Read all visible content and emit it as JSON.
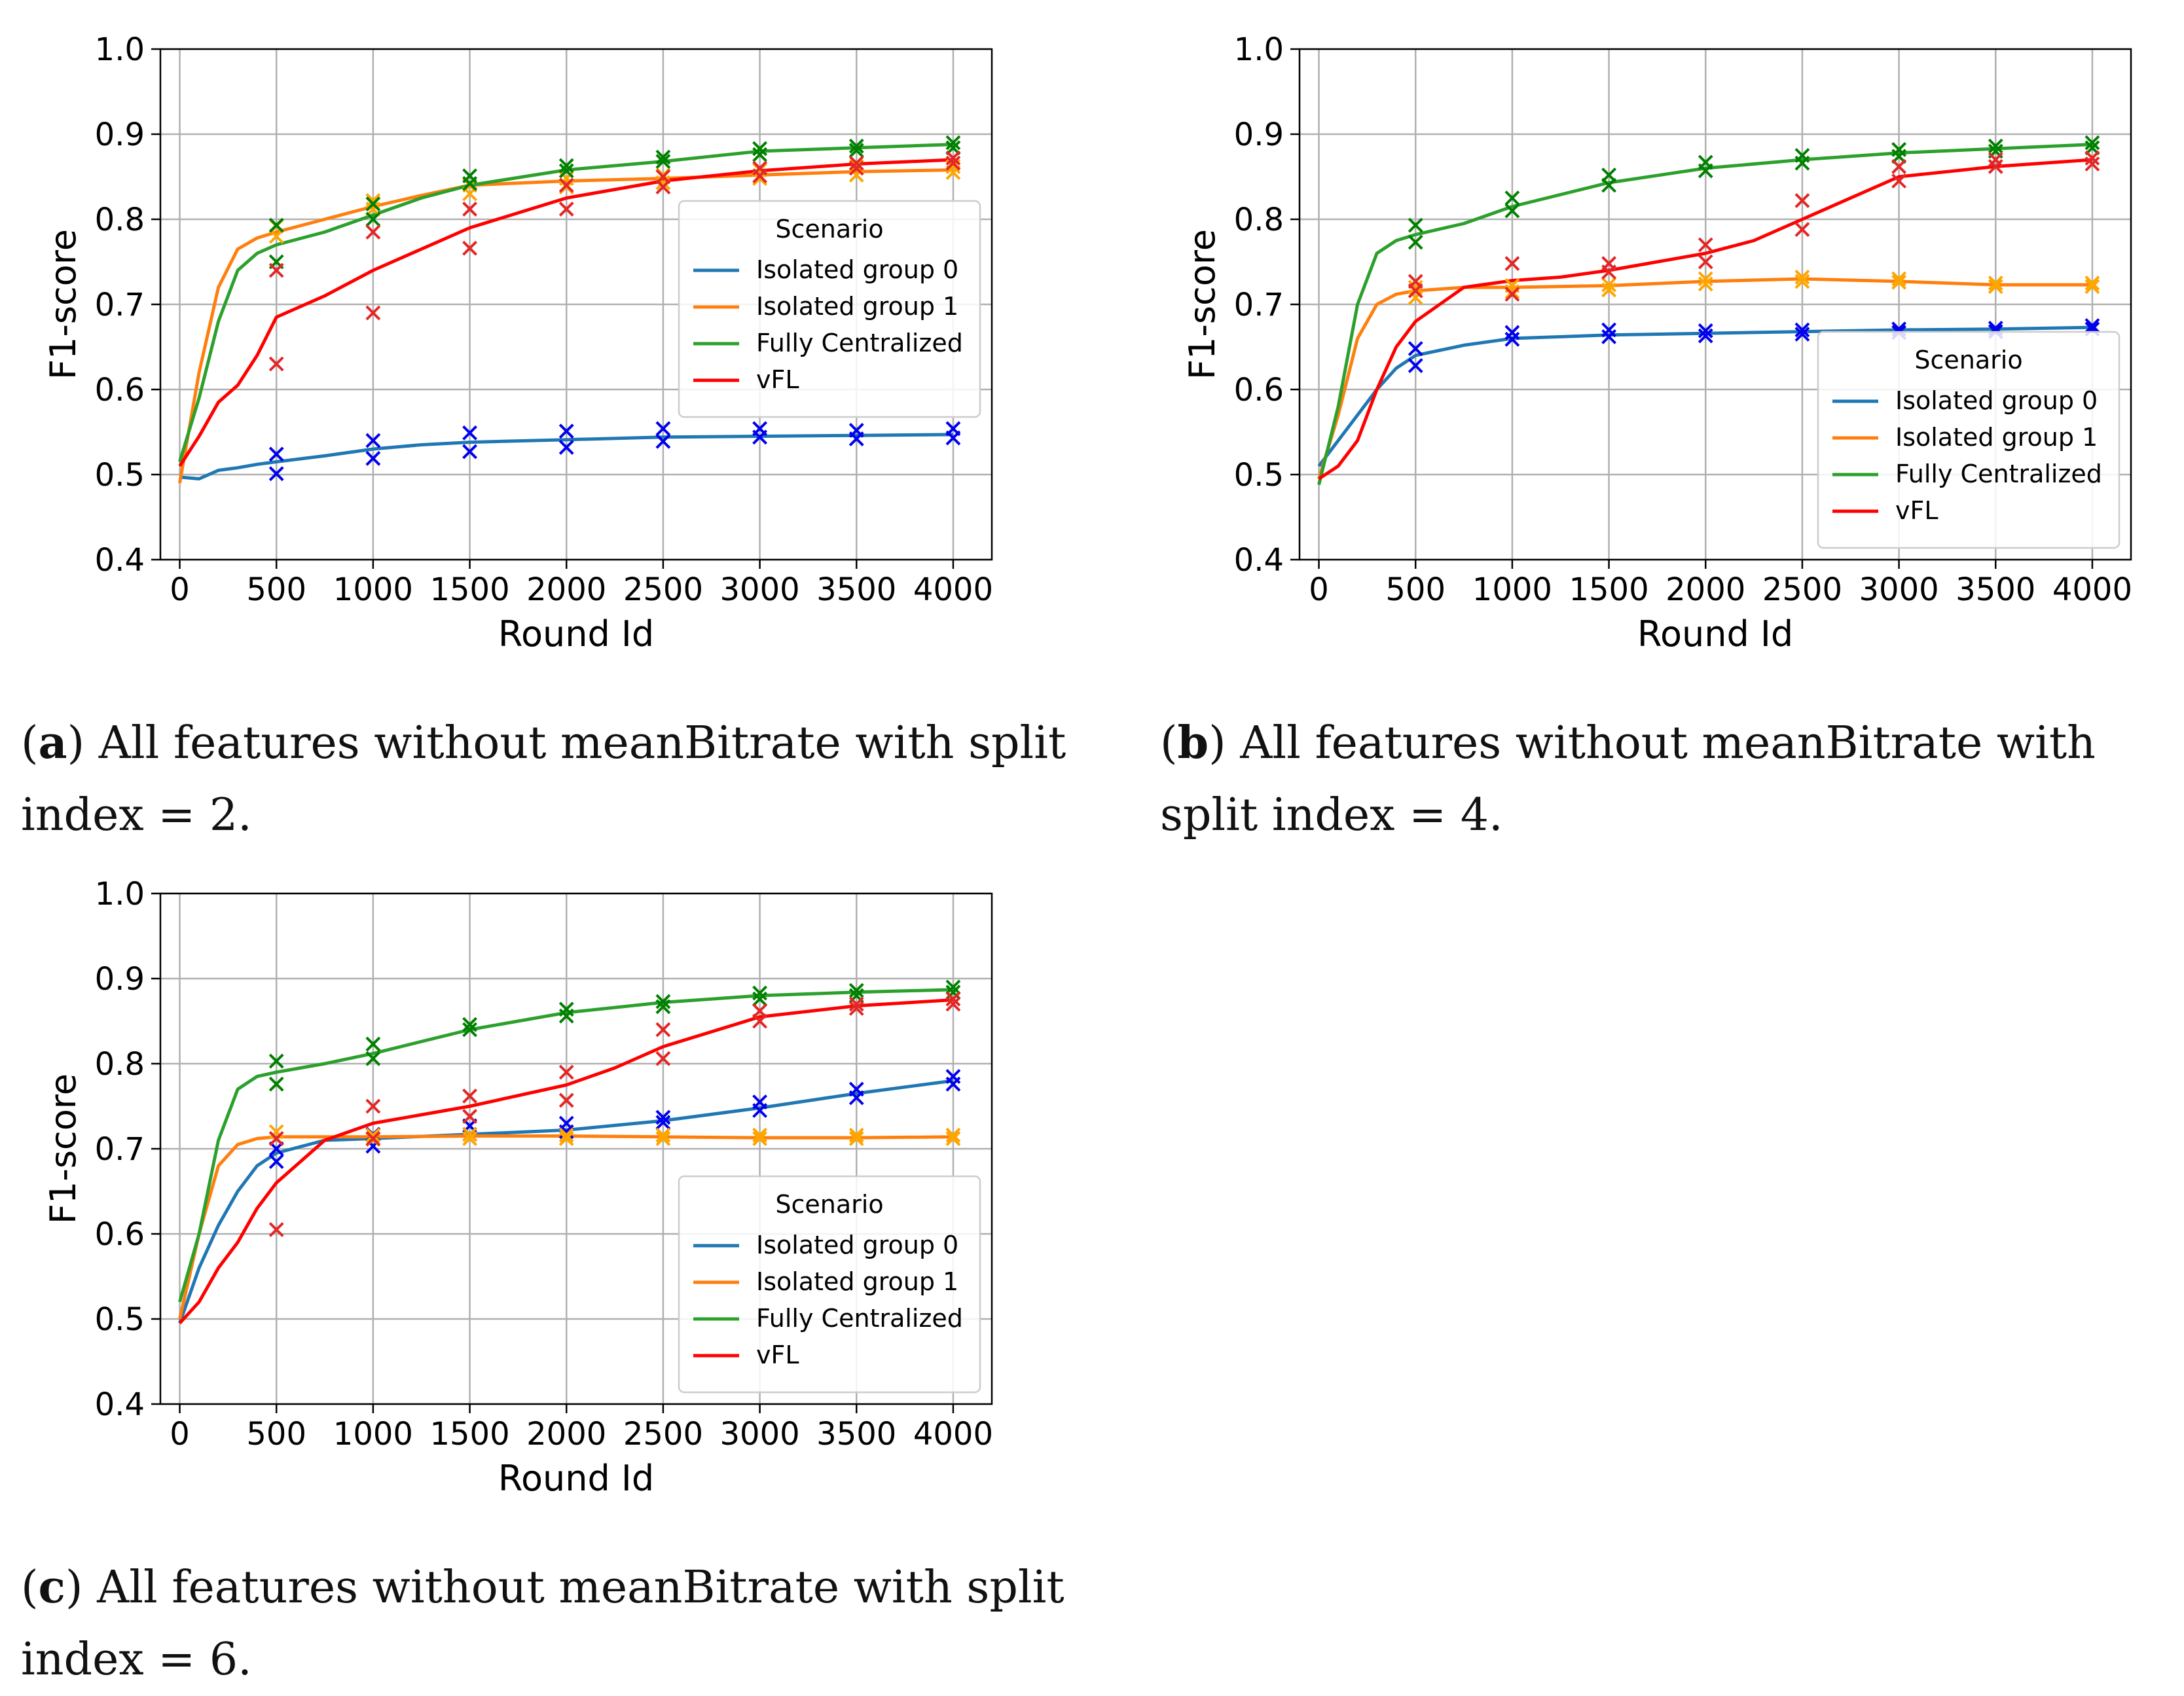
{
  "chart_data": [
    {
      "type": "line",
      "panel_letter": "a",
      "caption": "All features without meanBitrate with split index = 2.",
      "xlabel": "Round Id",
      "ylabel": "F1-score",
      "xlim": [
        -100,
        4200
      ],
      "ylim": [
        0.4,
        1.0
      ],
      "xticks": [
        0,
        500,
        1000,
        1500,
        2000,
        2500,
        3000,
        3500,
        4000
      ],
      "yticks": [
        0.4,
        0.5,
        0.6,
        0.7,
        0.8,
        0.9,
        1.0
      ],
      "grid": true,
      "legend": {
        "title": "Scenario",
        "placement": "center-right",
        "entries": [
          "Isolated group 0",
          "Isolated group 1",
          "Fully Centralized",
          "vFL"
        ]
      },
      "series": [
        {
          "name": "Isolated group 0",
          "color": "#1f77b4",
          "marker_color": "#0000ee",
          "x": [
            0,
            100,
            200,
            300,
            400,
            500,
            750,
            1000,
            1250,
            1500,
            2000,
            2500,
            3000,
            3500,
            4000
          ],
          "y": [
            0.497,
            0.495,
            0.505,
            0.508,
            0.512,
            0.515,
            0.522,
            0.53,
            0.535,
            0.538,
            0.541,
            0.544,
            0.545,
            0.546,
            0.547
          ],
          "markers_x": [
            500,
            500,
            1000,
            1000,
            1500,
            1500,
            2000,
            2000,
            2500,
            2500,
            3000,
            3000,
            3500,
            3500,
            4000,
            4000
          ],
          "markers_y": [
            0.524,
            0.501,
            0.54,
            0.519,
            0.549,
            0.527,
            0.551,
            0.532,
            0.554,
            0.539,
            0.554,
            0.544,
            0.552,
            0.542,
            0.554,
            0.543
          ]
        },
        {
          "name": "Isolated group 1",
          "color": "#ff7f0e",
          "marker_color": "#ffa500",
          "x": [
            0,
            100,
            200,
            300,
            400,
            500,
            750,
            1000,
            1250,
            1500,
            2000,
            2500,
            3000,
            3500,
            4000
          ],
          "y": [
            0.49,
            0.62,
            0.72,
            0.765,
            0.778,
            0.785,
            0.8,
            0.815,
            0.828,
            0.84,
            0.845,
            0.848,
            0.852,
            0.856,
            0.858
          ],
          "markers_x": [
            500,
            500,
            1000,
            1000,
            1500,
            1500,
            2000,
            2000,
            2500,
            2500,
            3000,
            3000,
            3500,
            3500,
            4000,
            4000
          ],
          "markers_y": [
            0.792,
            0.78,
            0.822,
            0.812,
            0.84,
            0.83,
            0.848,
            0.838,
            0.852,
            0.843,
            0.858,
            0.848,
            0.862,
            0.852,
            0.862,
            0.855
          ]
        },
        {
          "name": "Fully Centralized",
          "color": "#2ca02c",
          "marker_color": "#008000",
          "x": [
            0,
            100,
            200,
            300,
            400,
            500,
            750,
            1000,
            1250,
            1500,
            2000,
            2500,
            3000,
            3500,
            4000
          ],
          "y": [
            0.515,
            0.59,
            0.68,
            0.74,
            0.76,
            0.77,
            0.785,
            0.805,
            0.825,
            0.84,
            0.858,
            0.868,
            0.88,
            0.884,
            0.888
          ],
          "markers_x": [
            500,
            500,
            1000,
            1000,
            1500,
            1500,
            2000,
            2000,
            2500,
            2500,
            3000,
            3000,
            3500,
            3500,
            4000,
            4000
          ],
          "markers_y": [
            0.793,
            0.75,
            0.818,
            0.8,
            0.851,
            0.842,
            0.863,
            0.857,
            0.873,
            0.868,
            0.883,
            0.876,
            0.886,
            0.881,
            0.89,
            0.884
          ]
        },
        {
          "name": "vFL",
          "color": "#ff0000",
          "marker_color": "#e32626",
          "x": [
            0,
            100,
            200,
            300,
            400,
            500,
            750,
            1000,
            1250,
            1500,
            2000,
            2500,
            3000,
            3500,
            4000
          ],
          "y": [
            0.51,
            0.545,
            0.585,
            0.605,
            0.64,
            0.685,
            0.71,
            0.74,
            0.765,
            0.79,
            0.825,
            0.845,
            0.857,
            0.865,
            0.87
          ],
          "markers_x": [
            500,
            500,
            1000,
            1000,
            1500,
            1500,
            2000,
            2000,
            2500,
            2500,
            3000,
            3000,
            3500,
            3500,
            4000,
            4000
          ],
          "markers_y": [
            0.74,
            0.63,
            0.785,
            0.69,
            0.812,
            0.766,
            0.84,
            0.812,
            0.85,
            0.838,
            0.86,
            0.851,
            0.866,
            0.86,
            0.872,
            0.866
          ]
        }
      ]
    },
    {
      "type": "line",
      "panel_letter": "b",
      "caption": "All features without meanBitrate with split index = 4.",
      "xlabel": "Round Id",
      "ylabel": "F1-score",
      "xlim": [
        -100,
        4200
      ],
      "ylim": [
        0.4,
        1.0
      ],
      "xticks": [
        0,
        500,
        1000,
        1500,
        2000,
        2500,
        3000,
        3500,
        4000
      ],
      "yticks": [
        0.4,
        0.5,
        0.6,
        0.7,
        0.8,
        0.9,
        1.0
      ],
      "grid": true,
      "legend": {
        "title": "Scenario",
        "placement": "lower-right",
        "entries": [
          "Isolated group 0",
          "Isolated group 1",
          "Fully Centralized",
          "vFL"
        ]
      },
      "series": [
        {
          "name": "Isolated group 0",
          "color": "#1f77b4",
          "marker_color": "#0000ee",
          "x": [
            0,
            100,
            200,
            300,
            400,
            500,
            750,
            1000,
            1500,
            2000,
            2500,
            3000,
            3500,
            4000
          ],
          "y": [
            0.51,
            0.54,
            0.57,
            0.6,
            0.625,
            0.64,
            0.652,
            0.66,
            0.664,
            0.666,
            0.668,
            0.67,
            0.671,
            0.673
          ],
          "markers_x": [
            500,
            500,
            1000,
            1000,
            1500,
            1500,
            2000,
            2000,
            2500,
            2500,
            3000,
            3000,
            3500,
            3500,
            4000,
            4000
          ],
          "markers_y": [
            0.648,
            0.628,
            0.667,
            0.659,
            0.67,
            0.662,
            0.669,
            0.663,
            0.67,
            0.665,
            0.671,
            0.667,
            0.672,
            0.668,
            0.675,
            0.671
          ]
        },
        {
          "name": "Isolated group 1",
          "color": "#ff7f0e",
          "marker_color": "#ffa500",
          "x": [
            0,
            100,
            200,
            300,
            400,
            500,
            750,
            1000,
            1500,
            2000,
            2500,
            3000,
            3500,
            4000
          ],
          "y": [
            0.495,
            0.57,
            0.66,
            0.7,
            0.712,
            0.716,
            0.72,
            0.72,
            0.722,
            0.727,
            0.73,
            0.727,
            0.723,
            0.723
          ],
          "markers_x": [
            500,
            500,
            1000,
            1000,
            1500,
            1500,
            2000,
            2000,
            2500,
            2500,
            3000,
            3000,
            3500,
            3500,
            4000,
            4000
          ],
          "markers_y": [
            0.72,
            0.708,
            0.722,
            0.715,
            0.723,
            0.717,
            0.73,
            0.724,
            0.732,
            0.727,
            0.73,
            0.726,
            0.725,
            0.721,
            0.725,
            0.721
          ]
        },
        {
          "name": "Fully Centralized",
          "color": "#2ca02c",
          "marker_color": "#008000",
          "x": [
            0,
            100,
            200,
            300,
            400,
            500,
            750,
            1000,
            1500,
            2000,
            2500,
            3000,
            3500,
            4000
          ],
          "y": [
            0.488,
            0.58,
            0.7,
            0.76,
            0.775,
            0.782,
            0.795,
            0.815,
            0.843,
            0.86,
            0.87,
            0.878,
            0.883,
            0.888
          ],
          "markers_x": [
            500,
            500,
            1000,
            1000,
            1500,
            1500,
            2000,
            2000,
            2500,
            2500,
            3000,
            3000,
            3500,
            3500,
            4000,
            4000
          ],
          "markers_y": [
            0.793,
            0.773,
            0.825,
            0.81,
            0.852,
            0.84,
            0.867,
            0.857,
            0.875,
            0.866,
            0.882,
            0.874,
            0.886,
            0.88,
            0.89,
            0.884
          ]
        },
        {
          "name": "vFL",
          "color": "#ff0000",
          "marker_color": "#e32626",
          "x": [
            0,
            100,
            200,
            300,
            400,
            500,
            750,
            1000,
            1250,
            1500,
            2000,
            2250,
            2500,
            3000,
            3500,
            4000
          ],
          "y": [
            0.495,
            0.51,
            0.54,
            0.6,
            0.65,
            0.68,
            0.72,
            0.728,
            0.732,
            0.74,
            0.76,
            0.775,
            0.8,
            0.85,
            0.862,
            0.87
          ],
          "markers_x": [
            500,
            500,
            1000,
            1000,
            1500,
            1500,
            2000,
            2000,
            2500,
            2500,
            3000,
            3000,
            3500,
            3500,
            4000,
            4000
          ],
          "markers_y": [
            0.727,
            0.716,
            0.748,
            0.712,
            0.748,
            0.738,
            0.77,
            0.75,
            0.822,
            0.788,
            0.862,
            0.845,
            0.87,
            0.862,
            0.872,
            0.865
          ]
        }
      ]
    },
    {
      "type": "line",
      "panel_letter": "c",
      "caption": "All features without meanBitrate with split index = 6.",
      "xlabel": "Round Id",
      "ylabel": "F1-score",
      "xlim": [
        -100,
        4200
      ],
      "ylim": [
        0.4,
        1.0
      ],
      "xticks": [
        0,
        500,
        1000,
        1500,
        2000,
        2500,
        3000,
        3500,
        4000
      ],
      "yticks": [
        0.4,
        0.5,
        0.6,
        0.7,
        0.8,
        0.9,
        1.0
      ],
      "grid": true,
      "legend": {
        "title": "Scenario",
        "placement": "lower-right",
        "entries": [
          "Isolated group 0",
          "Isolated group 1",
          "Fully Centralized",
          "vFL"
        ]
      },
      "series": [
        {
          "name": "Isolated group 0",
          "color": "#1f77b4",
          "marker_color": "#0000ee",
          "x": [
            0,
            100,
            200,
            300,
            400,
            500,
            750,
            1000,
            1500,
            2000,
            2500,
            3000,
            3500,
            4000
          ],
          "y": [
            0.495,
            0.56,
            0.61,
            0.65,
            0.68,
            0.695,
            0.71,
            0.712,
            0.717,
            0.722,
            0.733,
            0.748,
            0.765,
            0.78
          ],
          "markers_x": [
            500,
            500,
            1000,
            1000,
            1500,
            1500,
            2000,
            2000,
            2500,
            2500,
            3000,
            3000,
            3500,
            3500,
            4000,
            4000
          ],
          "markers_y": [
            0.7,
            0.685,
            0.717,
            0.703,
            0.727,
            0.717,
            0.73,
            0.72,
            0.737,
            0.731,
            0.755,
            0.745,
            0.77,
            0.76,
            0.785,
            0.776
          ]
        },
        {
          "name": "Isolated group 1",
          "color": "#ff7f0e",
          "marker_color": "#ffa500",
          "x": [
            0,
            100,
            200,
            300,
            400,
            500,
            750,
            1000,
            1500,
            2000,
            2500,
            3000,
            3500,
            4000
          ],
          "y": [
            0.5,
            0.6,
            0.68,
            0.705,
            0.712,
            0.714,
            0.714,
            0.714,
            0.715,
            0.715,
            0.714,
            0.713,
            0.713,
            0.714
          ],
          "markers_x": [
            500,
            500,
            1000,
            1000,
            1500,
            1500,
            2000,
            2000,
            2500,
            2500,
            3000,
            3000,
            3500,
            3500,
            4000,
            4000
          ],
          "markers_y": [
            0.72,
            0.712,
            0.716,
            0.711,
            0.717,
            0.712,
            0.716,
            0.712,
            0.716,
            0.712,
            0.716,
            0.712,
            0.716,
            0.712,
            0.716,
            0.712
          ]
        },
        {
          "name": "Fully Centralized",
          "color": "#2ca02c",
          "marker_color": "#008000",
          "x": [
            0,
            100,
            200,
            300,
            400,
            500,
            750,
            1000,
            1500,
            2000,
            2500,
            3000,
            3500,
            4000
          ],
          "y": [
            0.52,
            0.6,
            0.71,
            0.77,
            0.785,
            0.79,
            0.8,
            0.812,
            0.84,
            0.86,
            0.872,
            0.88,
            0.884,
            0.887
          ],
          "markers_x": [
            500,
            500,
            1000,
            1000,
            1500,
            1500,
            2000,
            2000,
            2500,
            2500,
            3000,
            3000,
            3500,
            3500,
            4000,
            4000
          ],
          "markers_y": [
            0.803,
            0.776,
            0.823,
            0.806,
            0.846,
            0.84,
            0.864,
            0.856,
            0.873,
            0.867,
            0.883,
            0.876,
            0.886,
            0.88,
            0.89,
            0.884
          ]
        },
        {
          "name": "vFL",
          "color": "#ff0000",
          "marker_color": "#e32626",
          "x": [
            0,
            100,
            200,
            300,
            400,
            500,
            750,
            1000,
            1500,
            2000,
            2250,
            2500,
            3000,
            3500,
            4000
          ],
          "y": [
            0.495,
            0.52,
            0.56,
            0.59,
            0.63,
            0.66,
            0.71,
            0.73,
            0.75,
            0.775,
            0.795,
            0.82,
            0.855,
            0.868,
            0.875
          ],
          "markers_x": [
            500,
            500,
            1000,
            1000,
            1500,
            1500,
            2000,
            2000,
            2500,
            2500,
            3000,
            3000,
            3500,
            3500,
            4000,
            4000
          ],
          "markers_y": [
            0.712,
            0.605,
            0.75,
            0.712,
            0.762,
            0.738,
            0.79,
            0.757,
            0.84,
            0.806,
            0.862,
            0.85,
            0.87,
            0.865,
            0.876,
            0.87
          ]
        }
      ]
    }
  ]
}
